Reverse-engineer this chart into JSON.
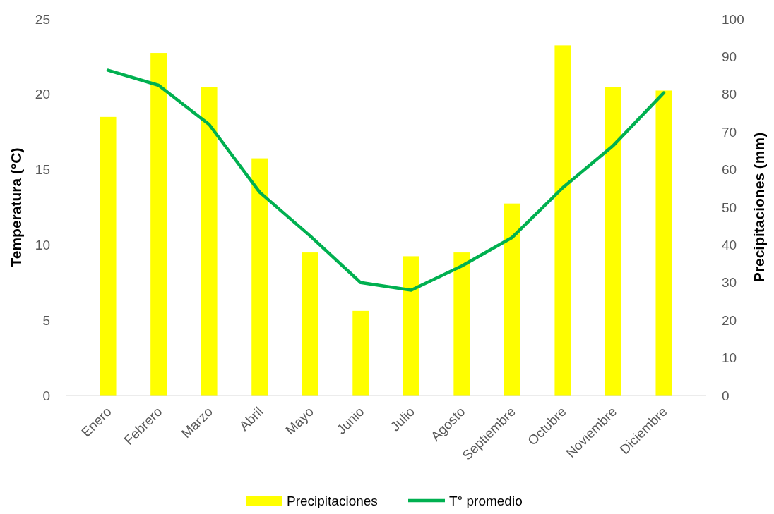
{
  "chart_data": {
    "type": "bar",
    "categories": [
      "Enero",
      "Febrero",
      "Marzo",
      "Abril",
      "Mayo",
      "Junio",
      "Julio",
      "Agosto",
      "Septiembre",
      "Octubre",
      "Noviembre",
      "Diciembre"
    ],
    "series": [
      {
        "name": "Precipitaciones",
        "axis": "y2",
        "color": "#ffff00",
        "values": [
          74,
          91,
          82,
          63,
          38,
          22.5,
          37,
          38,
          51,
          93,
          82,
          81
        ]
      },
      {
        "name": "T° promedio",
        "type": "line",
        "axis": "y",
        "color": "#00b050",
        "values": [
          21.6,
          20.6,
          18.0,
          13.5,
          10.6,
          7.5,
          7.0,
          8.6,
          10.5,
          13.8,
          16.6,
          20.1
        ]
      }
    ],
    "ylabel": "Temperatura (°C)",
    "y2label": "Precipitaciones (mm)",
    "ylim": [
      0,
      25
    ],
    "yticks": [
      0,
      5,
      10,
      15,
      20,
      25
    ],
    "y2lim": [
      0,
      100
    ],
    "y2ticks": [
      0,
      10,
      20,
      30,
      40,
      50,
      60,
      70,
      80,
      90,
      100
    ],
    "grid": false,
    "legend": "bottom",
    "marker": "none",
    "line_style": "solid"
  }
}
